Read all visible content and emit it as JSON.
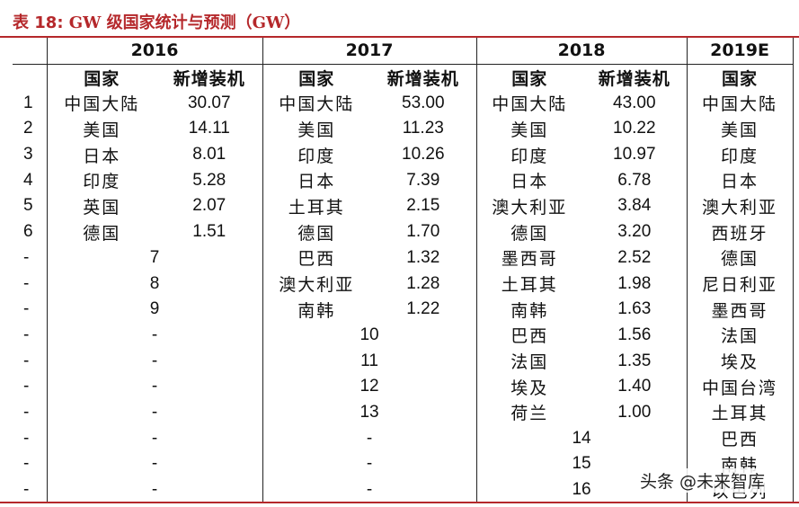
{
  "title": {
    "prefix": "表 18:",
    "middle": "GW 级国家统计与预测（GW）"
  },
  "years": [
    "2016",
    "2017",
    "2018",
    "2019E"
  ],
  "headers": {
    "country": "国家",
    "new_capacity": "新增装机"
  },
  "rows": [
    {
      "rank": "1",
      "c2016": "中国大陆",
      "v2016": "30.07",
      "c2017": "中国大陆",
      "v2017": "53.00",
      "c2018": "中国大陆",
      "v2018": "43.00",
      "c2019": "中国大陆"
    },
    {
      "rank": "2",
      "c2016": "美国",
      "v2016": "14.11",
      "c2017": "美国",
      "v2017": "11.23",
      "c2018": "美国",
      "v2018": "10.22",
      "c2019": "美国"
    },
    {
      "rank": "3",
      "c2016": "日本",
      "v2016": "8.01",
      "c2017": "印度",
      "v2017": "10.26",
      "c2018": "印度",
      "v2018": "10.97",
      "c2019": "印度"
    },
    {
      "rank": "4",
      "c2016": "印度",
      "v2016": "5.28",
      "c2017": "日本",
      "v2017": "7.39",
      "c2018": "日本",
      "v2018": "6.78",
      "c2019": "日本"
    },
    {
      "rank": "5",
      "c2016": "英国",
      "v2016": "2.07",
      "c2017": "土耳其",
      "v2017": "2.15",
      "c2018": "澳大利亚",
      "v2018": "3.84",
      "c2019": "澳大利亚"
    },
    {
      "rank": "6",
      "c2016": "德国",
      "v2016": "1.51",
      "c2017": "德国",
      "v2017": "1.70",
      "c2018": "德国",
      "v2018": "3.20",
      "c2019": "西班牙"
    },
    {
      "rank": "-",
      "n2016": "7",
      "c2017": "巴西",
      "v2017": "1.32",
      "c2018": "墨西哥",
      "v2018": "2.52",
      "c2019": "德国"
    },
    {
      "rank": "-",
      "n2016": "8",
      "c2017": "澳大利亚",
      "v2017": "1.28",
      "c2018": "土耳其",
      "v2018": "1.98",
      "c2019": "尼日利亚"
    },
    {
      "rank": "-",
      "n2016": "9",
      "c2017": "南韩",
      "v2017": "1.22",
      "c2018": "南韩",
      "v2018": "1.63",
      "c2019": "墨西哥"
    },
    {
      "rank": "-",
      "n2016": "-",
      "n2017": "10",
      "c2018": "巴西",
      "v2018": "1.56",
      "c2019": "法国"
    },
    {
      "rank": "-",
      "n2016": "-",
      "n2017": "11",
      "c2018": "法国",
      "v2018": "1.35",
      "c2019": "埃及"
    },
    {
      "rank": "-",
      "n2016": "-",
      "n2017": "12",
      "c2018": "埃及",
      "v2018": "1.40",
      "c2019": "中国台湾"
    },
    {
      "rank": "-",
      "n2016": "-",
      "n2017": "13",
      "c2018": "荷兰",
      "v2018": "1.00",
      "c2019": "土耳其"
    },
    {
      "rank": "-",
      "n2016": "-",
      "n2017": "-",
      "n2018": "14",
      "c2019": "巴西"
    },
    {
      "rank": "-",
      "n2016": "-",
      "n2017": "-",
      "n2018": "15",
      "c2019": "南韩"
    },
    {
      "rank": "-",
      "n2016": "-",
      "n2017": "-",
      "n2018": "16",
      "c2019": "以色列"
    }
  ],
  "watermark": "头条 @未来智库"
}
